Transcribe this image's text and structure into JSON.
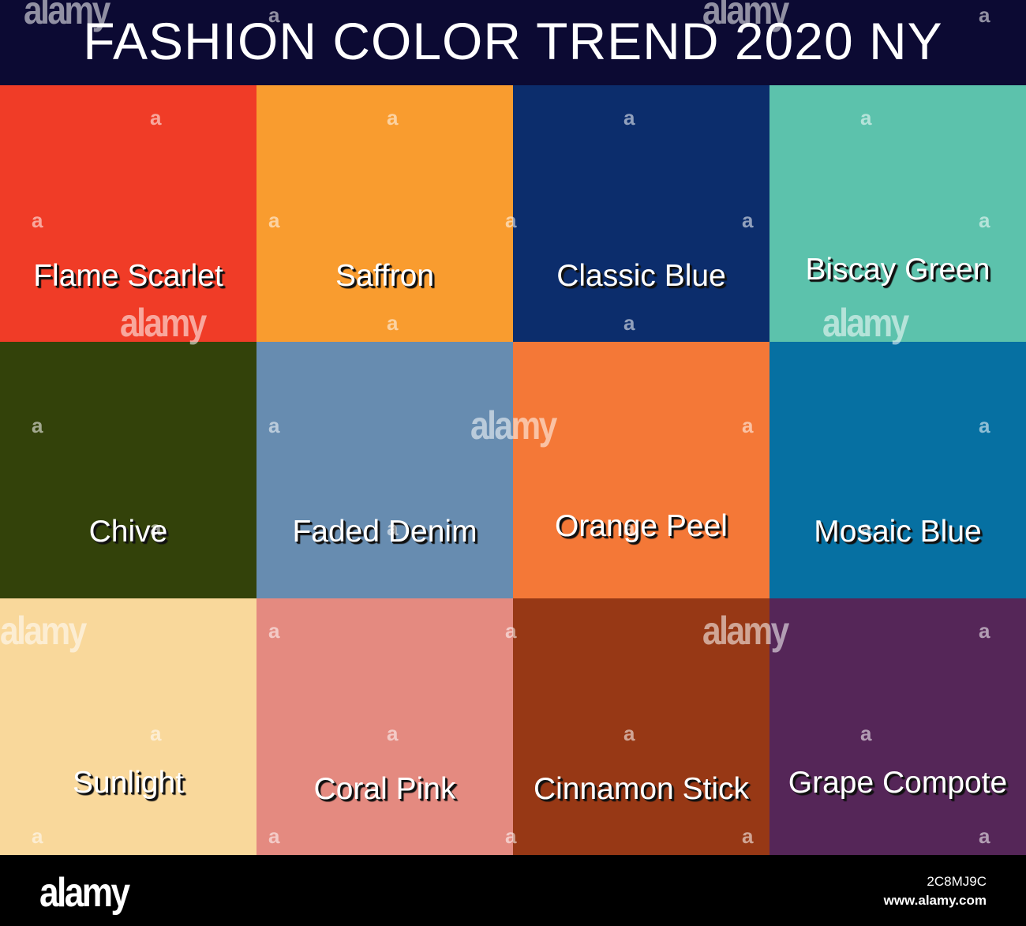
{
  "header": {
    "title": "FASHION COLOR TREND 2020 NY"
  },
  "swatches": [
    {
      "name": "Flame Scarlet",
      "color": "#f03c27"
    },
    {
      "name": "Saffron",
      "color": "#f99c2f"
    },
    {
      "name": "Classic Blue",
      "color": "#0c2d6c"
    },
    {
      "name": "Biscay Green",
      "color": "#5cc2ac"
    },
    {
      "name": "Chive",
      "color": "#33420a"
    },
    {
      "name": "Faded Denim",
      "color": "#678cb0"
    },
    {
      "name": "Orange Peel",
      "color": "#f47837"
    },
    {
      "name": "Mosaic Blue",
      "color": "#0670a2"
    },
    {
      "name": "Sunlight",
      "color": "#f9d89b"
    },
    {
      "name": "Coral Pink",
      "color": "#e48a80"
    },
    {
      "name": "Cinnamon Stick",
      "color": "#973815"
    },
    {
      "name": "Grape Compote",
      "color": "#552658"
    }
  ],
  "watermark": {
    "small": "a",
    "large": "alamy"
  },
  "footer": {
    "logo": "alamy",
    "image_id": "2C8MJ9C",
    "url": "www.alamy.com"
  }
}
